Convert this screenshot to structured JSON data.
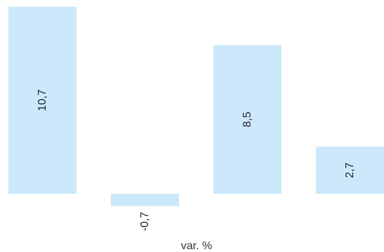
{
  "chart_data": {
    "type": "bar",
    "categories": [
      "",
      "",
      "",
      ""
    ],
    "values": [
      10.7,
      -0.7,
      8.5,
      2.7
    ],
    "value_labels": [
      "10,7",
      "-0,7",
      "8,5",
      "2,7"
    ],
    "xlabel": "var. %",
    "ylabel": "",
    "title": "",
    "ylim": [
      -0.7,
      10.7
    ],
    "grid": false,
    "legend": "none",
    "label_orientation": "vertical",
    "colors": {
      "bar": "#cce9fc",
      "label": "#222222"
    }
  }
}
